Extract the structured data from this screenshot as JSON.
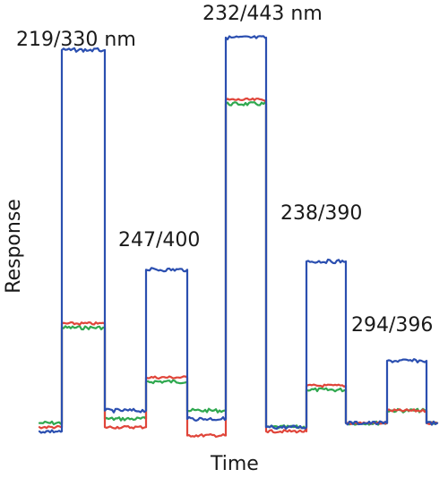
{
  "chart_data": {
    "type": "line",
    "xlabel": "Time",
    "ylabel": "Response",
    "x_segments": [
      0,
      1,
      2,
      3,
      4,
      5,
      6,
      7,
      8,
      9,
      10
    ],
    "colors": {
      "blue": "#2b4fb0",
      "red": "#e0453a",
      "green": "#2fa84f",
      "cyan": "#46b9d8"
    },
    "segments": [
      {
        "blue": 0.05,
        "red": 0.06,
        "green": 0.07
      },
      {
        "blue": 0.97,
        "red": 0.31,
        "green": 0.3
      },
      {
        "blue": 0.1,
        "red": 0.06,
        "green": 0.08
      },
      {
        "blue": 0.44,
        "red": 0.18,
        "green": 0.17
      },
      {
        "blue": 0.08,
        "red": 0.04,
        "green": 0.1
      },
      {
        "blue": 1.0,
        "red": 0.85,
        "green": 0.84
      },
      {
        "blue": 0.06,
        "red": 0.05,
        "green": 0.06
      },
      {
        "blue": 0.46,
        "red": 0.16,
        "green": 0.15
      },
      {
        "blue": 0.07,
        "red": 0.07,
        "green": 0.07
      },
      {
        "blue": 0.22,
        "red": 0.1,
        "green": 0.1
      },
      {
        "blue": 0.07,
        "red": 0.07,
        "green": 0.07
      }
    ],
    "annotations": [
      {
        "text": "219/330 nm",
        "segment": 1
      },
      {
        "text": "247/400",
        "segment": 3
      },
      {
        "text": "232/443 nm",
        "segment": 5
      },
      {
        "text": "238/390",
        "segment": 7
      },
      {
        "text": "294/396",
        "segment": 9
      }
    ],
    "grid": false,
    "legend": "none"
  }
}
